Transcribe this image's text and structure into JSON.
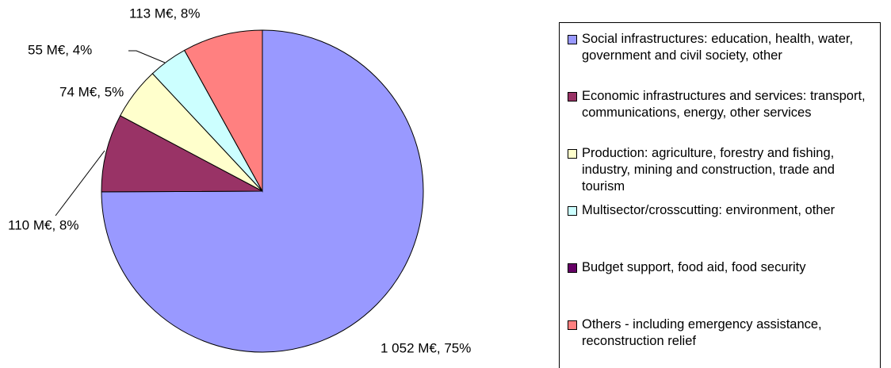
{
  "chart_data": {
    "type": "pie",
    "categories": [
      "Social infrastructures: education, health, water, government and civil society, other",
      "Economic infrastructures and services: transport, communications, energy, other services",
      "Production: agriculture, forestry and fishing, industry, mining and construction, trade and tourism",
      "Multisector/crosscutting: environment, other",
      "Budget support, food aid, food security",
      "Others - including emergency assistance, reconstruction relief"
    ],
    "values": [
      1052,
      110,
      74,
      55,
      0,
      113
    ],
    "value_labels": [
      "1 052 M€, 75%",
      "110 M€, 8%",
      "74 M€, 5%",
      "55 M€, 4%",
      null,
      "113 M€, 8%"
    ],
    "colors": [
      "#9999ff",
      "#993366",
      "#ffffcc",
      "#ccffff",
      "#660066",
      "#ff8080"
    ],
    "legend": "right"
  }
}
